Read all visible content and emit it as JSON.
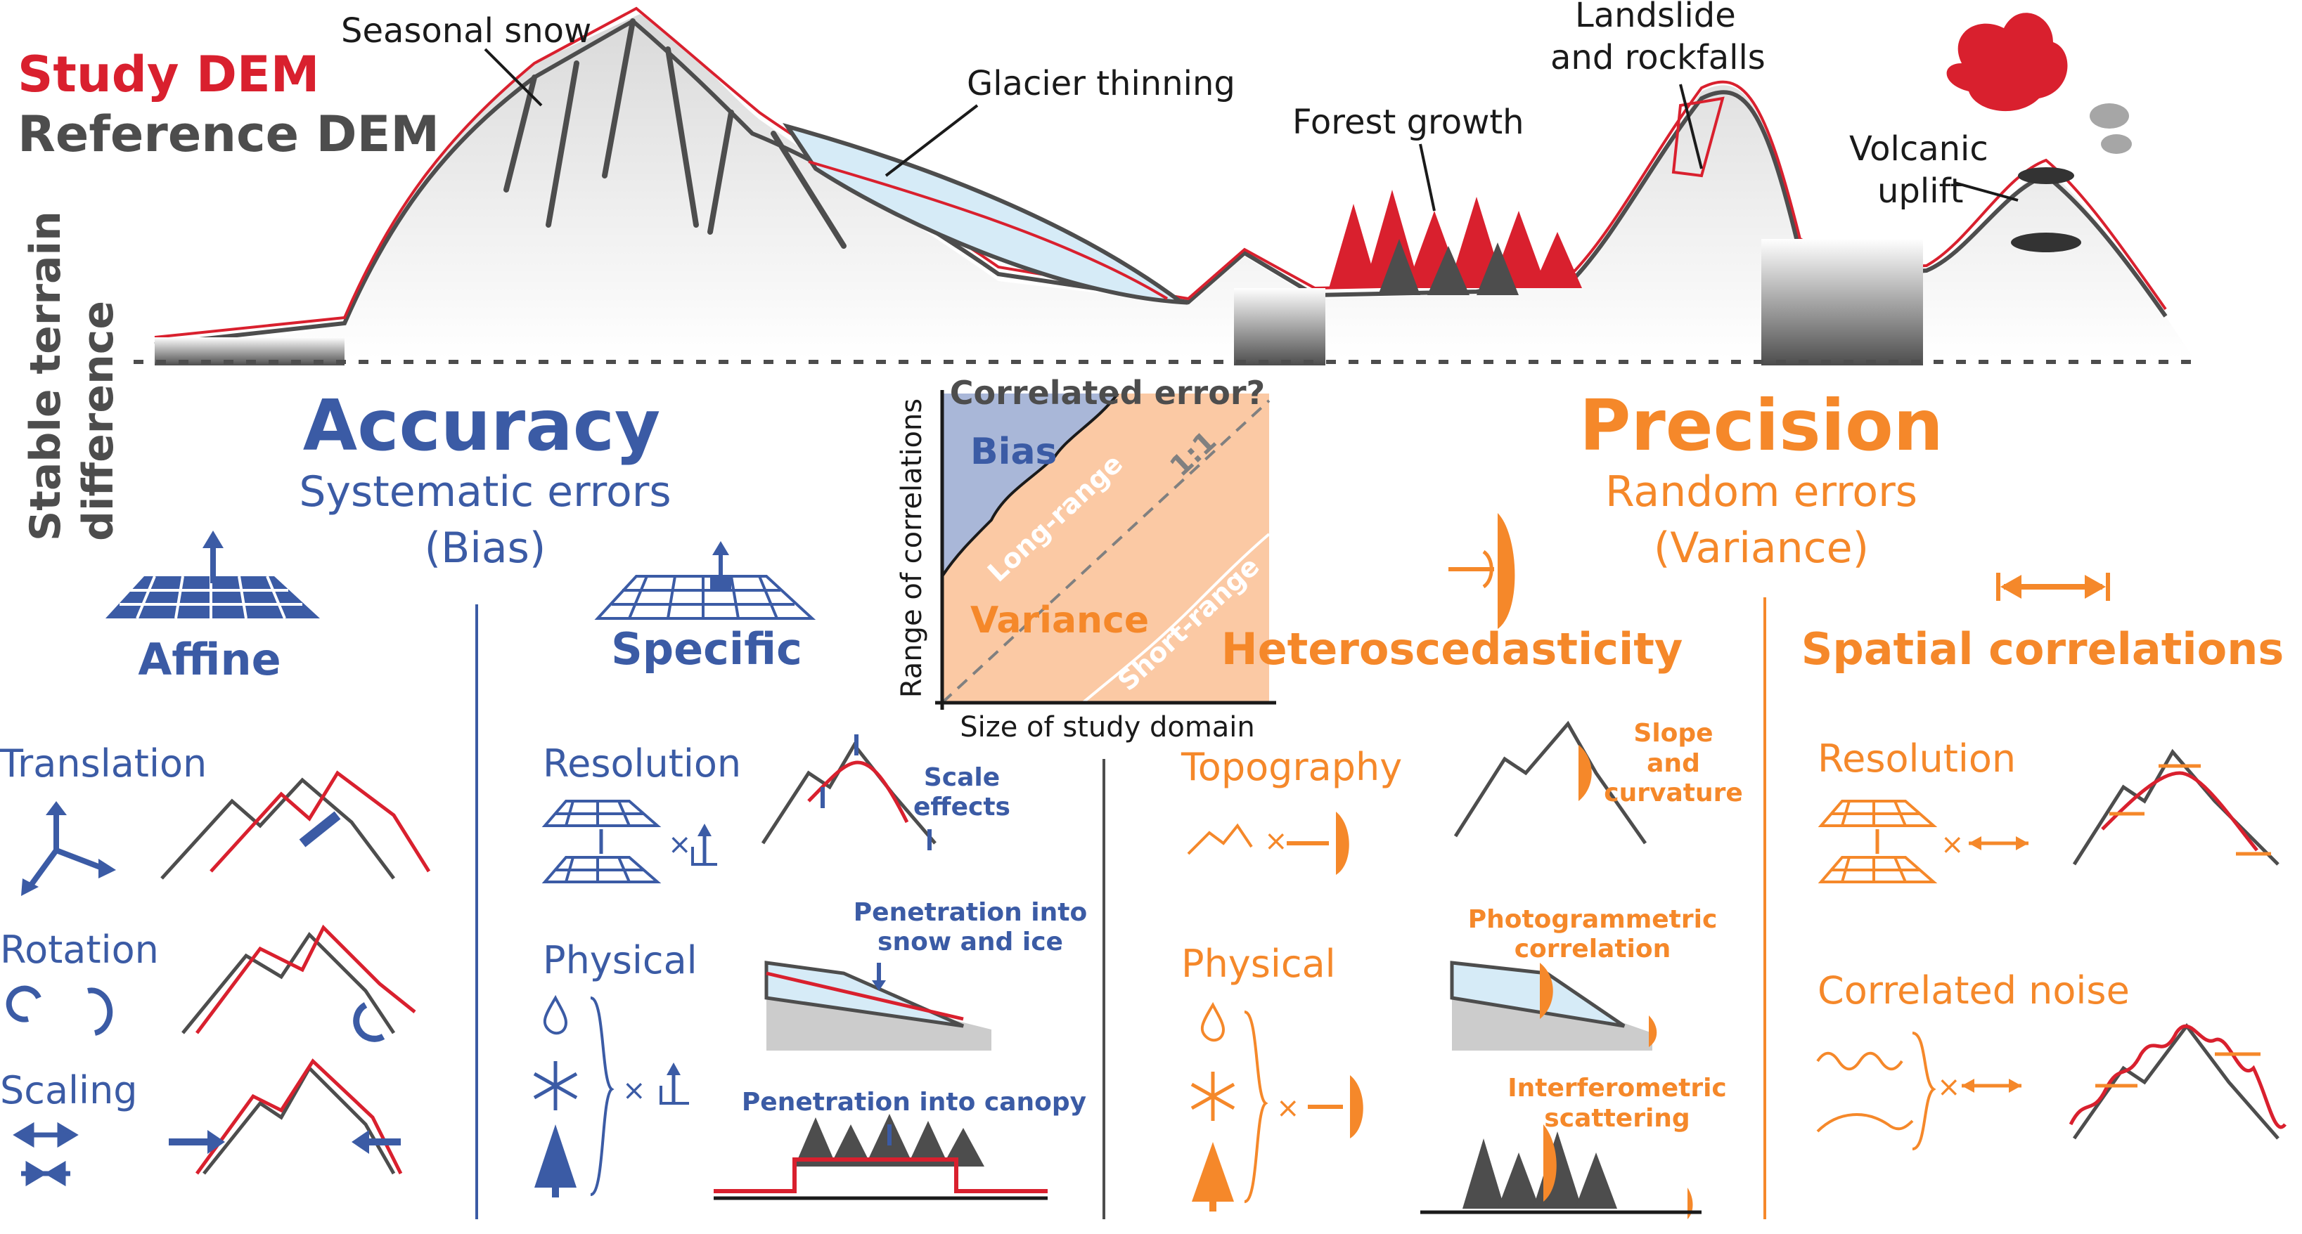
{
  "colors": {
    "study": "#d9202e",
    "reference": "#4d4d4d",
    "accuracy": "#3b5ba5",
    "precision": "#f5882a",
    "terrain": "#e6e6e6",
    "ice": "#d6ebf7",
    "bias_fill": "#a9b7d8",
    "variance_fill": "#fbc9a4"
  },
  "legend": {
    "study": "Study DEM",
    "reference": "Reference DEM",
    "stable_line1": "Stable terrain",
    "stable_line2": "difference"
  },
  "landscape": {
    "snow": "Seasonal snow",
    "glacier": "Glacier thinning",
    "forest": "Forest growth",
    "landslide1": "Landslide",
    "landslide2": "and rockfalls",
    "volcano1": "Volcanic",
    "volcano2": "uplift"
  },
  "accuracy": {
    "title": "Accuracy",
    "sub1": "Systematic errors",
    "sub2": "(Bias)",
    "affine": "Affine",
    "specific": "Specific",
    "translation": "Translation",
    "rotation": "Rotation",
    "scaling": "Scaling",
    "resolution": "Resolution",
    "physical": "Physical",
    "scale_effects1": "Scale",
    "scale_effects2": "effects",
    "pen_snow1": "Penetration into",
    "pen_snow2": "snow and ice",
    "pen_canopy": "Penetration into canopy",
    "times": "×"
  },
  "precision": {
    "title": "Precision",
    "sub1": "Random errors",
    "sub2": "(Variance)",
    "hetero": "Heteroscedasticity",
    "spatial": "Spatial correlations",
    "topography": "Topography",
    "physical": "Physical",
    "slope1": "Slope",
    "slope2": "and",
    "slope3": "curvature",
    "photo1": "Photogrammetric",
    "photo2": "correlation",
    "interf1": "Interferometric",
    "interf2": "scattering",
    "resolution": "Resolution",
    "corr_noise": "Correlated noise",
    "times": "×"
  },
  "corr_chart": {
    "title": "Correlated error?",
    "xlabel": "Size of study domain",
    "ylabel": "Range of correlations",
    "bias": "Bias",
    "variance": "Variance",
    "long": "Long-range",
    "short": "Short-range",
    "oneone": "1:1"
  }
}
